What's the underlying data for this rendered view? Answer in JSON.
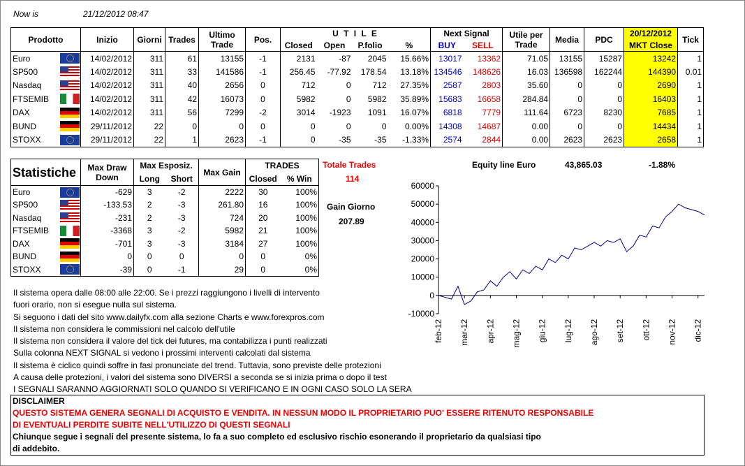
{
  "header": {
    "label": "Now is",
    "datetime": "21/12/2012 08:47"
  },
  "main_table": {
    "headers": {
      "prodotto": "Prodotto",
      "inizio": "Inizio",
      "giorni": "Giorni",
      "trades": "Trades",
      "ultimo": "Ultimo Trade",
      "pos": "Pos.",
      "utile": "U T I L E",
      "closed": "Closed",
      "open": "Open",
      "pfolio": "P.folio",
      "pct": "%",
      "next": "Next Signal",
      "buy": "BUY",
      "sell": "SELL",
      "utile_trade": "Utile per Trade",
      "media": "Media",
      "pdc": "PDC",
      "date": "20/12/2012",
      "mkt": "MKT Close",
      "tick": "Tick"
    },
    "rows": [
      [
        "Euro",
        "14/02/2012",
        "311",
        "61",
        "13155",
        "-1",
        "2131",
        "-87",
        "2045",
        "15.66%",
        "13017",
        "13362",
        "71.05",
        "13155",
        "15287",
        "13242",
        "1"
      ],
      [
        "SP500",
        "14/02/2012",
        "311",
        "33",
        "141586",
        "-1",
        "256.45",
        "-77.92",
        "178.54",
        "13.18%",
        "134546",
        "148626",
        "16.03",
        "136598",
        "162244",
        "144390",
        "0.01"
      ],
      [
        "Nasdaq",
        "14/02/2012",
        "311",
        "40",
        "2656",
        "0",
        "712",
        "0",
        "712",
        "27.35%",
        "2587",
        "2803",
        "35.60",
        "0",
        "0",
        "2690",
        "1"
      ],
      [
        "FTSEMIB",
        "14/02/2012",
        "311",
        "42",
        "16073",
        "0",
        "5982",
        "0",
        "5982",
        "35.89%",
        "15683",
        "16658",
        "284.84",
        "0",
        "0",
        "16403",
        "1"
      ],
      [
        "DAX",
        "14/02/2012",
        "311",
        "56",
        "7299",
        "-2",
        "3014",
        "-1923",
        "1091",
        "16.07%",
        "6818",
        "7779",
        "111.64",
        "6723",
        "8230",
        "7685",
        "1"
      ],
      [
        "BUND",
        "29/11/2012",
        "22",
        "0",
        "0",
        "0",
        "0",
        "0",
        "0",
        "0.00%",
        "14308",
        "14687",
        "0.00",
        "0",
        "0",
        "14434",
        "1"
      ],
      [
        "STOXX",
        "29/11/2012",
        "22",
        "1",
        "2623",
        "-1",
        "0",
        "-35",
        "-35",
        "-1.33%",
        "2574",
        "2844",
        "0.00",
        "2623",
        "2623",
        "2658",
        "1"
      ]
    ]
  },
  "stats_table": {
    "headers": {
      "title": "Statistiche",
      "dd": "Max Draw Down",
      "espo": "Max Esposiz.",
      "long": "Long",
      "short": "Short",
      "gain": "Max Gain",
      "trades": "TRADES",
      "closed": "Closed",
      "win": "% Win"
    },
    "rows": [
      [
        "Euro",
        "-629",
        "3",
        "-2",
        "2222",
        "30",
        "100%"
      ],
      [
        "SP500",
        "-133.53",
        "2",
        "-3",
        "261.80",
        "16",
        "100%"
      ],
      [
        "Nasdaq",
        "-231",
        "2",
        "-3",
        "724",
        "20",
        "100%"
      ],
      [
        "FTSEMIB",
        "-3368",
        "3",
        "-2",
        "5982",
        "21",
        "100%"
      ],
      [
        "DAX",
        "-701",
        "3",
        "-3",
        "3184",
        "27",
        "100%"
      ],
      [
        "BUND",
        "0",
        "0",
        "0",
        "0",
        "0",
        "0%"
      ],
      [
        "STOXX",
        "-39",
        "0",
        "-1",
        "29",
        "0",
        "0%"
      ]
    ]
  },
  "totale_trades": {
    "label": "Totale Trades",
    "value": "114"
  },
  "gain_giorno": {
    "label": "Gain Giorno",
    "value": "207.89"
  },
  "equity": {
    "value": "43,865.03",
    "pct": "-1.88%"
  },
  "notes": [
    "Il sistema opera dalle 08:00 alle 22:00. Se i prezzi raggiungono i livelli di intervento",
    "fuori orario, non si esegue nulla sul sistema.",
    "Si seguono i dati del sito www.dailyfx.com alla sezione Charts e www.forexpros.com",
    "Il sistema non considera le commissioni nel calcolo dell'utile",
    "Il sistema non considera il valore del tick dei futures, ma contabilizza i punti realizzati",
    "Sulla colonna NEXT SIGNAL si vedono i prossimi interventi calcolati dal sistema",
    "Il sistema è ciclico quindi soffre in fasi pronunciate del trend. Tuttavia, sono previste delle protezioni",
    "A causa delle protezioni, i valori del sistema sono DIVERSI a seconda se si inizia prima o dopo il test",
    "I SEGNALI SARANNO AGGIORNATI SOLO QUANDO SI VERIFICANO E IN OGNI CASO SOLO LA SERA"
  ],
  "disclaimer": {
    "title": "DISCLAIMER",
    "warning": [
      "QUESTO SISTEMA GENERA SEGNALI DI ACQUISTO E VENDITA. IN NESSUN MODO IL PROPRIETARIO PUO' ESSERE RITENUTO RESPONSABILE",
      "DI EVENTUALI PERDITE SUBITE NELL'UTILIZZO DI QUESTI SEGNALI"
    ],
    "text": [
      "Chiunque segue i segnali del presente sistema, lo fa a suo completo ed esclusivo rischio esonerando il proprietario da qualsiasi tipo",
      "di addebito."
    ]
  },
  "chart_data": {
    "type": "line",
    "title": "Equity line Euro",
    "color": "#000080",
    "grid": false,
    "categories": [
      "feb-12",
      null,
      null,
      null,
      "mar-12",
      null,
      null,
      null,
      "apr-12",
      null,
      null,
      null,
      "mag-12",
      null,
      null,
      null,
      "giu-12",
      null,
      null,
      null,
      "lug-12",
      null,
      null,
      null,
      "ago-12",
      null,
      null,
      null,
      "set-12",
      null,
      null,
      null,
      "ott-12",
      null,
      null,
      null,
      "nov-12",
      null,
      null,
      null,
      "dic-12",
      null
    ],
    "values": [
      0,
      -1000,
      -2000,
      5000,
      -5000,
      -3000,
      2000,
      3000,
      8000,
      5000,
      10000,
      13000,
      9000,
      14000,
      12000,
      16000,
      14000,
      20000,
      18000,
      22000,
      20000,
      26000,
      25000,
      27000,
      29000,
      27000,
      30000,
      29000,
      31000,
      24000,
      27000,
      33000,
      32000,
      38000,
      37000,
      43000,
      46000,
      50000,
      48000,
      47000,
      46000,
      44000
    ],
    "ylim": [
      -10000,
      60000
    ],
    "yticks": [
      -10000,
      0,
      10000,
      20000,
      30000,
      40000,
      50000,
      60000
    ]
  }
}
